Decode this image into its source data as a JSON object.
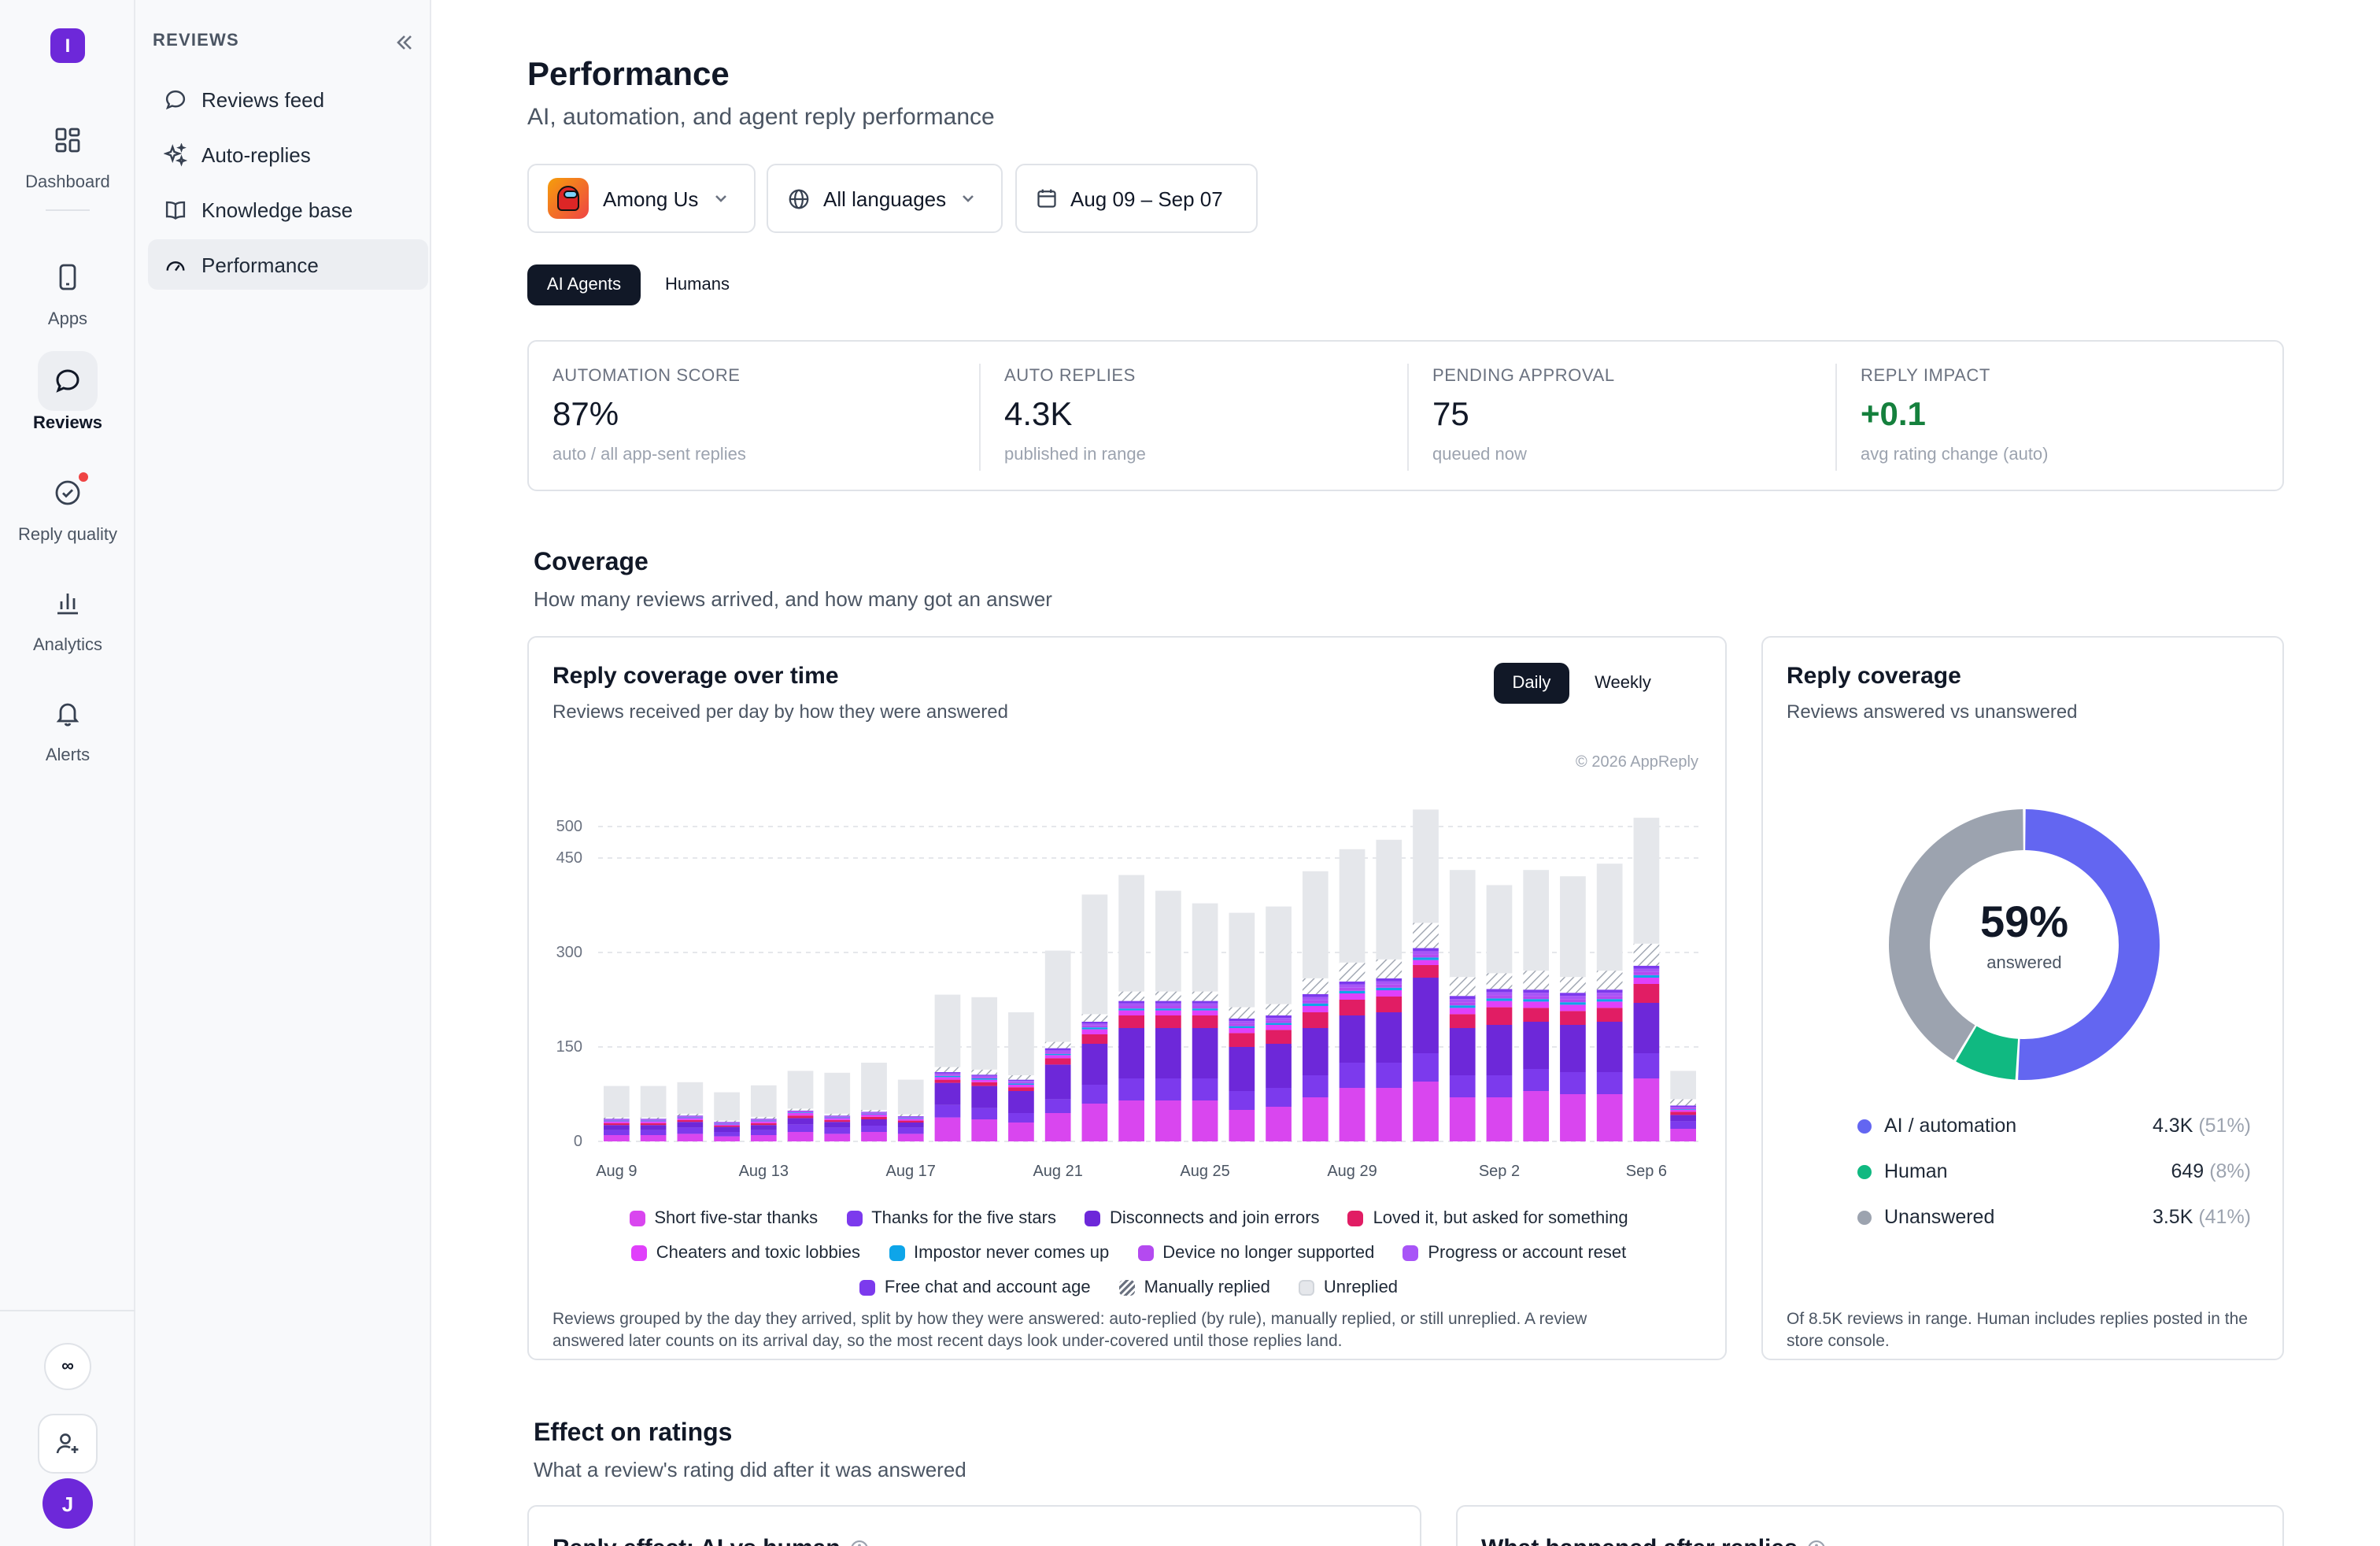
{
  "rail": {
    "logo": "I",
    "items": [
      {
        "label": "Dashboard",
        "icon": "grid-icon"
      },
      {
        "label": "Apps",
        "icon": "phone-icon"
      },
      {
        "label": "Reviews",
        "icon": "chat-bubble-icon"
      },
      {
        "label": "Reply quality",
        "icon": "check-badge-icon"
      },
      {
        "label": "Analytics",
        "icon": "bar-chart-icon"
      },
      {
        "label": "Alerts",
        "icon": "bell-icon"
      }
    ],
    "bottom": {
      "infinity": "∞",
      "avatar": "J"
    }
  },
  "subnav": {
    "title": "REVIEWS",
    "items": [
      {
        "label": "Reviews feed"
      },
      {
        "label": "Auto-replies"
      },
      {
        "label": "Knowledge base"
      },
      {
        "label": "Performance"
      }
    ]
  },
  "page": {
    "title": "Performance",
    "subtitle": "AI, automation, and agent reply performance"
  },
  "filters": {
    "app": "Among Us",
    "language": "All languages",
    "date_range": "Aug 09 – Sep 07"
  },
  "segments": {
    "ai": "AI Agents",
    "humans": "Humans"
  },
  "kpis": [
    {
      "label": "AUTOMATION SCORE",
      "value": "87%",
      "note": "auto / all app-sent replies"
    },
    {
      "label": "AUTO REPLIES",
      "value": "4.3K",
      "note": "published in range"
    },
    {
      "label": "PENDING APPROVAL",
      "value": "75",
      "note": "queued now"
    },
    {
      "label": "REPLY IMPACT",
      "value": "+0.1",
      "note": "avg rating change (auto)"
    }
  ],
  "coverage": {
    "title": "Coverage",
    "subtitle": "How many reviews arrived, and how many got an answer"
  },
  "time_card": {
    "title": "Reply coverage over time",
    "subtitle": "Reviews received per day by how they were answered",
    "toggle_daily": "Daily",
    "toggle_weekly": "Weekly",
    "watermark": "© 2026 AppReply",
    "footnote_1": "Reviews grouped by the day they arrived, split by how they were answered: auto-replied (by rule), manually replied, or still unreplied. A review",
    "footnote_2": "answered later counts on its arrival day, so the most recent days look under-covered until those replies land."
  },
  "legend": [
    {
      "name": "Short five-star thanks",
      "color": "#d946ef"
    },
    {
      "name": "Thanks for the five stars",
      "color": "#7c3aed"
    },
    {
      "name": "Disconnects and join errors",
      "color": "#6d28d9"
    },
    {
      "name": "Loved it, but asked for something",
      "color": "#e11d64"
    },
    {
      "name": "Cheaters and toxic lobbies",
      "color": "#e040fb"
    },
    {
      "name": "Impostor never comes up",
      "color": "#0ea5e9"
    },
    {
      "name": "Device no longer supported",
      "color": "#b44af0"
    },
    {
      "name": "Progress or account reset",
      "color": "#a855f7"
    },
    {
      "name": "Free chat and account age",
      "color": "#7c3aed"
    },
    {
      "name": "Manually replied",
      "color": "#9ca3af"
    },
    {
      "name": "Unreplied",
      "color": "#e5e7eb"
    }
  ],
  "chart_data": [
    {
      "type": "bar",
      "stacked": true,
      "title": "Reply coverage over time",
      "ylim": [
        0,
        600
      ],
      "yticks": [
        0,
        150,
        300,
        450,
        500
      ],
      "grid": true,
      "x_tick_labels": [
        "Aug 9",
        "Aug 13",
        "Aug 17",
        "Aug 21",
        "Aug 25",
        "Aug 29",
        "Sep 2",
        "Sep 6"
      ],
      "categories": [
        "Aug 9",
        "Aug 10",
        "Aug 11",
        "Aug 12",
        "Aug 13",
        "Aug 14",
        "Aug 15",
        "Aug 16",
        "Aug 17",
        "Aug 18",
        "Aug 19",
        "Aug 20",
        "Aug 21",
        "Aug 22",
        "Aug 23",
        "Aug 24",
        "Aug 25",
        "Aug 26",
        "Aug 27",
        "Aug 28",
        "Aug 29",
        "Aug 30",
        "Aug 31",
        "Sep 1",
        "Sep 2",
        "Sep 3",
        "Sep 4",
        "Sep 5",
        "Sep 6",
        "Sep 7"
      ],
      "series": [
        {
          "name": "Short five-star thanks",
          "values": [
            10,
            10,
            12,
            8,
            10,
            15,
            12,
            15,
            12,
            38,
            35,
            30,
            45,
            60,
            65,
            65,
            65,
            50,
            55,
            70,
            85,
            85,
            95,
            70,
            70,
            80,
            75,
            75,
            100,
            20
          ]
        },
        {
          "name": "Thanks for the five stars",
          "values": [
            8,
            8,
            10,
            7,
            8,
            12,
            10,
            10,
            10,
            20,
            18,
            15,
            22,
            30,
            35,
            35,
            35,
            30,
            30,
            35,
            40,
            40,
            45,
            35,
            35,
            35,
            35,
            35,
            40,
            12
          ]
        },
        {
          "name": "Disconnects and join errors",
          "values": [
            8,
            8,
            9,
            8,
            8,
            10,
            9,
            10,
            8,
            35,
            35,
            35,
            55,
            65,
            80,
            80,
            80,
            70,
            70,
            75,
            75,
            80,
            120,
            75,
            80,
            75,
            75,
            80,
            80,
            10
          ]
        },
        {
          "name": "Loved it, but asked for something",
          "values": [
            3,
            3,
            3,
            2,
            3,
            4,
            3,
            4,
            3,
            5,
            6,
            6,
            10,
            15,
            20,
            20,
            20,
            22,
            22,
            25,
            25,
            25,
            20,
            22,
            28,
            22,
            22,
            22,
            30,
            5
          ]
        },
        {
          "name": "Cheaters and toxic lobbies",
          "values": [
            3,
            3,
            3,
            2,
            3,
            4,
            3,
            4,
            3,
            4,
            4,
            4,
            5,
            8,
            8,
            8,
            8,
            8,
            8,
            10,
            10,
            10,
            8,
            10,
            10,
            10,
            10,
            10,
            10,
            3
          ]
        },
        {
          "name": "Impostor never comes up",
          "values": [
            1,
            1,
            1,
            1,
            1,
            1,
            1,
            1,
            1,
            2,
            2,
            2,
            2,
            3,
            3,
            3,
            3,
            3,
            3,
            4,
            4,
            4,
            4,
            4,
            4,
            4,
            4,
            4,
            4,
            1
          ]
        },
        {
          "name": "Device no longer supported",
          "values": [
            1,
            1,
            1,
            1,
            1,
            1,
            1,
            1,
            1,
            2,
            2,
            2,
            3,
            3,
            4,
            4,
            4,
            4,
            4,
            5,
            5,
            5,
            5,
            5,
            5,
            5,
            5,
            5,
            5,
            2
          ]
        },
        {
          "name": "Progress or account reset",
          "values": [
            1,
            1,
            1,
            1,
            1,
            1,
            1,
            1,
            1,
            2,
            2,
            2,
            3,
            3,
            4,
            4,
            4,
            4,
            4,
            5,
            5,
            5,
            5,
            5,
            5,
            5,
            5,
            5,
            5,
            2
          ]
        },
        {
          "name": "Free chat and account age",
          "values": [
            1,
            1,
            1,
            1,
            1,
            1,
            1,
            1,
            1,
            2,
            2,
            2,
            3,
            3,
            4,
            4,
            4,
            4,
            4,
            5,
            5,
            5,
            5,
            5,
            5,
            5,
            5,
            5,
            5,
            2
          ]
        },
        {
          "name": "Manually replied",
          "values": [
            2,
            2,
            3,
            2,
            3,
            3,
            3,
            3,
            3,
            8,
            8,
            7,
            10,
            12,
            15,
            15,
            15,
            18,
            18,
            25,
            30,
            30,
            40,
            30,
            25,
            30,
            25,
            30,
            35,
            10
          ]
        },
        {
          "name": "Unreplied",
          "values": [
            50,
            50,
            50,
            45,
            50,
            60,
            65,
            75,
            55,
            115,
            115,
            100,
            145,
            190,
            185,
            160,
            140,
            150,
            155,
            170,
            180,
            190,
            180,
            170,
            140,
            160,
            160,
            170,
            200,
            45
          ]
        }
      ]
    },
    {
      "type": "pie",
      "donut": true,
      "title": "Reply coverage",
      "center_label": "59%",
      "center_sub": "answered",
      "series": [
        {
          "name": "AI / automation",
          "value": 4300,
          "display": "4.3K",
          "pct": "(51%)",
          "color": "#6366f1"
        },
        {
          "name": "Human",
          "value": 649,
          "display": "649",
          "pct": "(8%)",
          "color": "#10b981"
        },
        {
          "name": "Unanswered",
          "value": 3500,
          "display": "3.5K",
          "pct": "(41%)",
          "color": "#9ca3af"
        }
      ]
    }
  ],
  "donut_card": {
    "title": "Reply coverage",
    "subtitle": "Reviews answered vs unanswered",
    "footnote_1": "Of 8.5K reviews in range. Human includes replies posted in the",
    "footnote_2": "store console."
  },
  "effect": {
    "title": "Effect on ratings",
    "subtitle": "What a review's rating did after it was answered",
    "card1_title": "Reply effect: AI vs human",
    "card2_title": "What happened after replies"
  }
}
